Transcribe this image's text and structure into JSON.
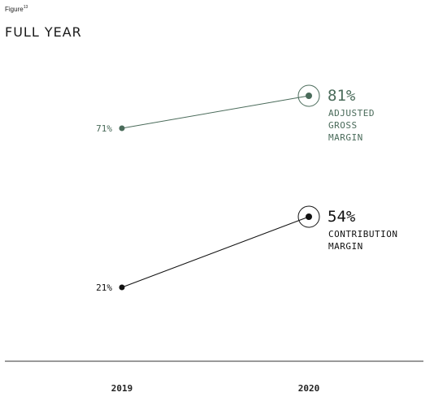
{
  "figure": {
    "label": "Figure",
    "number": "13"
  },
  "title": "FULL YEAR",
  "colors": {
    "green": "#4a6b5a",
    "black": "#111111",
    "axis": "#333333"
  },
  "chart_data": {
    "type": "line",
    "title": "FULL YEAR",
    "categories": [
      "2019",
      "2020"
    ],
    "series": [
      {
        "name": "ADJUSTED GROSS MARGIN",
        "name_lines": [
          "ADJUSTED",
          "GROSS",
          "MARGIN"
        ],
        "values": [
          71,
          81
        ],
        "value_labels": [
          "71%",
          "81%"
        ],
        "color": "#4a6b5a"
      },
      {
        "name": "CONTRIBUTION MARGIN",
        "name_lines": [
          "CONTRIBUTION",
          "MARGIN"
        ],
        "values": [
          21,
          54
        ],
        "value_labels": [
          "21%",
          "54%"
        ],
        "color": "#111111"
      }
    ],
    "ylim": [
      0,
      100
    ],
    "grid": false,
    "legend": "inline-right"
  }
}
